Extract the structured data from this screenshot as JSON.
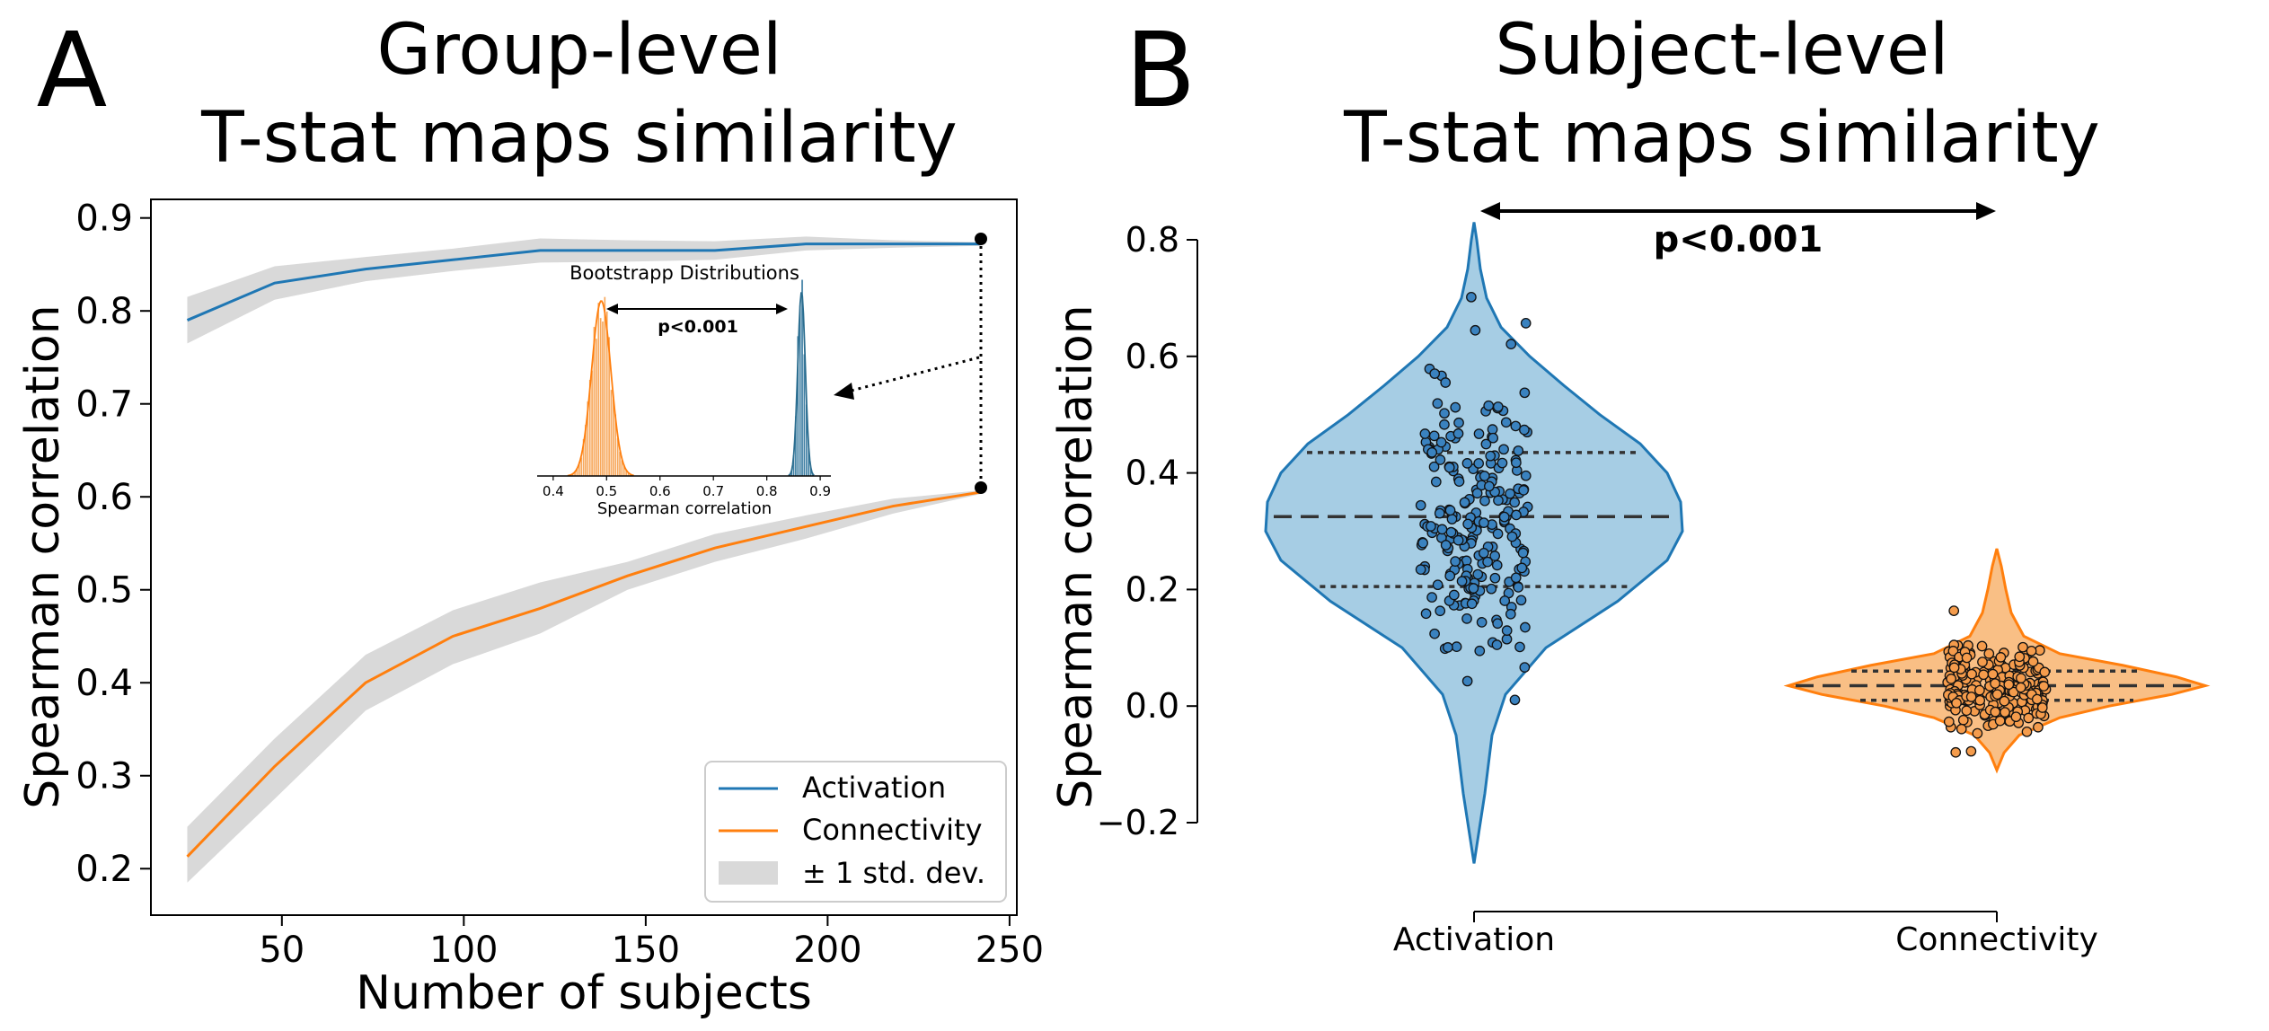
{
  "colors": {
    "activation": "#1f77b4",
    "connectivity": "#ff7f0e",
    "band": "#d9d9d9",
    "violin_a": "#a6cde4",
    "violin_c": "#f9bf85"
  },
  "panelA": {
    "letter": "A",
    "title_line1": "Group-level",
    "title_line2": "T-stat maps similarity",
    "xlabel": "Number of subjects",
    "ylabel": "Spearman correlation",
    "xticks": [
      "50",
      "100",
      "150",
      "200",
      "250"
    ],
    "yticks": [
      "0.2",
      "0.3",
      "0.4",
      "0.5",
      "0.6",
      "0.7",
      "0.8",
      "0.9"
    ],
    "legend": {
      "activation": "Activation",
      "connectivity": "Connectivity",
      "band": "± 1 std. dev."
    },
    "inset": {
      "title": "Bootstrapp Distributions",
      "xlabel": "Spearman correlation",
      "pvalue": "p<0.001",
      "xticks": [
        "0.4",
        "0.5",
        "0.6",
        "0.7",
        "0.8",
        "0.9"
      ]
    }
  },
  "panelB": {
    "letter": "B",
    "title_line1": "Subject-level",
    "title_line2": "T-stat maps similarity",
    "ylabel": "Spearman correlation",
    "pvalue": "p<0.001",
    "yticks": [
      "−0.2",
      "0.0",
      "0.2",
      "0.4",
      "0.6",
      "0.8"
    ],
    "categories": [
      "Activation",
      "Connectivity"
    ]
  },
  "chart_data": [
    {
      "type": "line",
      "panel": "A",
      "title": "Group-level T-stat maps similarity",
      "xlabel": "Number of subjects",
      "ylabel": "Spearman correlation",
      "xlim": [
        14,
        252
      ],
      "ylim": [
        0.15,
        0.92
      ],
      "legend": "lower-right",
      "x": [
        24,
        48,
        73,
        97,
        121,
        145,
        169,
        194,
        218,
        242
      ],
      "series": [
        {
          "name": "Activation",
          "values": [
            0.79,
            0.83,
            0.845,
            0.855,
            0.865,
            0.865,
            0.865,
            0.872,
            0.872,
            0.872
          ],
          "std_low": [
            0.765,
            0.812,
            0.832,
            0.843,
            0.852,
            0.853,
            0.855,
            0.865,
            0.868,
            0.87
          ],
          "std_high": [
            0.815,
            0.848,
            0.858,
            0.867,
            0.878,
            0.876,
            0.875,
            0.88,
            0.876,
            0.874
          ]
        },
        {
          "name": "Connectivity",
          "values": [
            0.213,
            0.31,
            0.4,
            0.45,
            0.48,
            0.515,
            0.545,
            0.568,
            0.59,
            0.605
          ],
          "std_low": [
            0.185,
            0.275,
            0.37,
            0.42,
            0.453,
            0.5,
            0.53,
            0.555,
            0.582,
            0.603
          ],
          "std_high": [
            0.245,
            0.34,
            0.43,
            0.478,
            0.508,
            0.53,
            0.56,
            0.58,
            0.598,
            0.607
          ]
        }
      ]
    },
    {
      "type": "histogram",
      "panel": "A-inset",
      "title": "Bootstrapp Distributions",
      "xlabel": "Spearman correlation",
      "xlim": [
        0.37,
        0.92
      ],
      "series": [
        {
          "name": "Connectivity",
          "center": 0.49,
          "spread": 0.018
        },
        {
          "name": "Activation",
          "center": 0.865,
          "spread": 0.007
        }
      ]
    },
    {
      "type": "violin",
      "panel": "B",
      "title": "Subject-level T-stat maps similarity",
      "ylabel": "Spearman correlation",
      "ylim": [
        -0.2,
        0.85
      ],
      "categories": [
        "Activation",
        "Connectivity"
      ],
      "series": [
        {
          "name": "Activation",
          "min": -0.27,
          "max": 0.83,
          "q1": 0.205,
          "median": 0.325,
          "q3": 0.435,
          "n_points": 230
        },
        {
          "name": "Connectivity",
          "min": -0.11,
          "max": 0.27,
          "q1": 0.01,
          "median": 0.035,
          "q3": 0.06,
          "n_points": 230
        }
      ]
    }
  ]
}
